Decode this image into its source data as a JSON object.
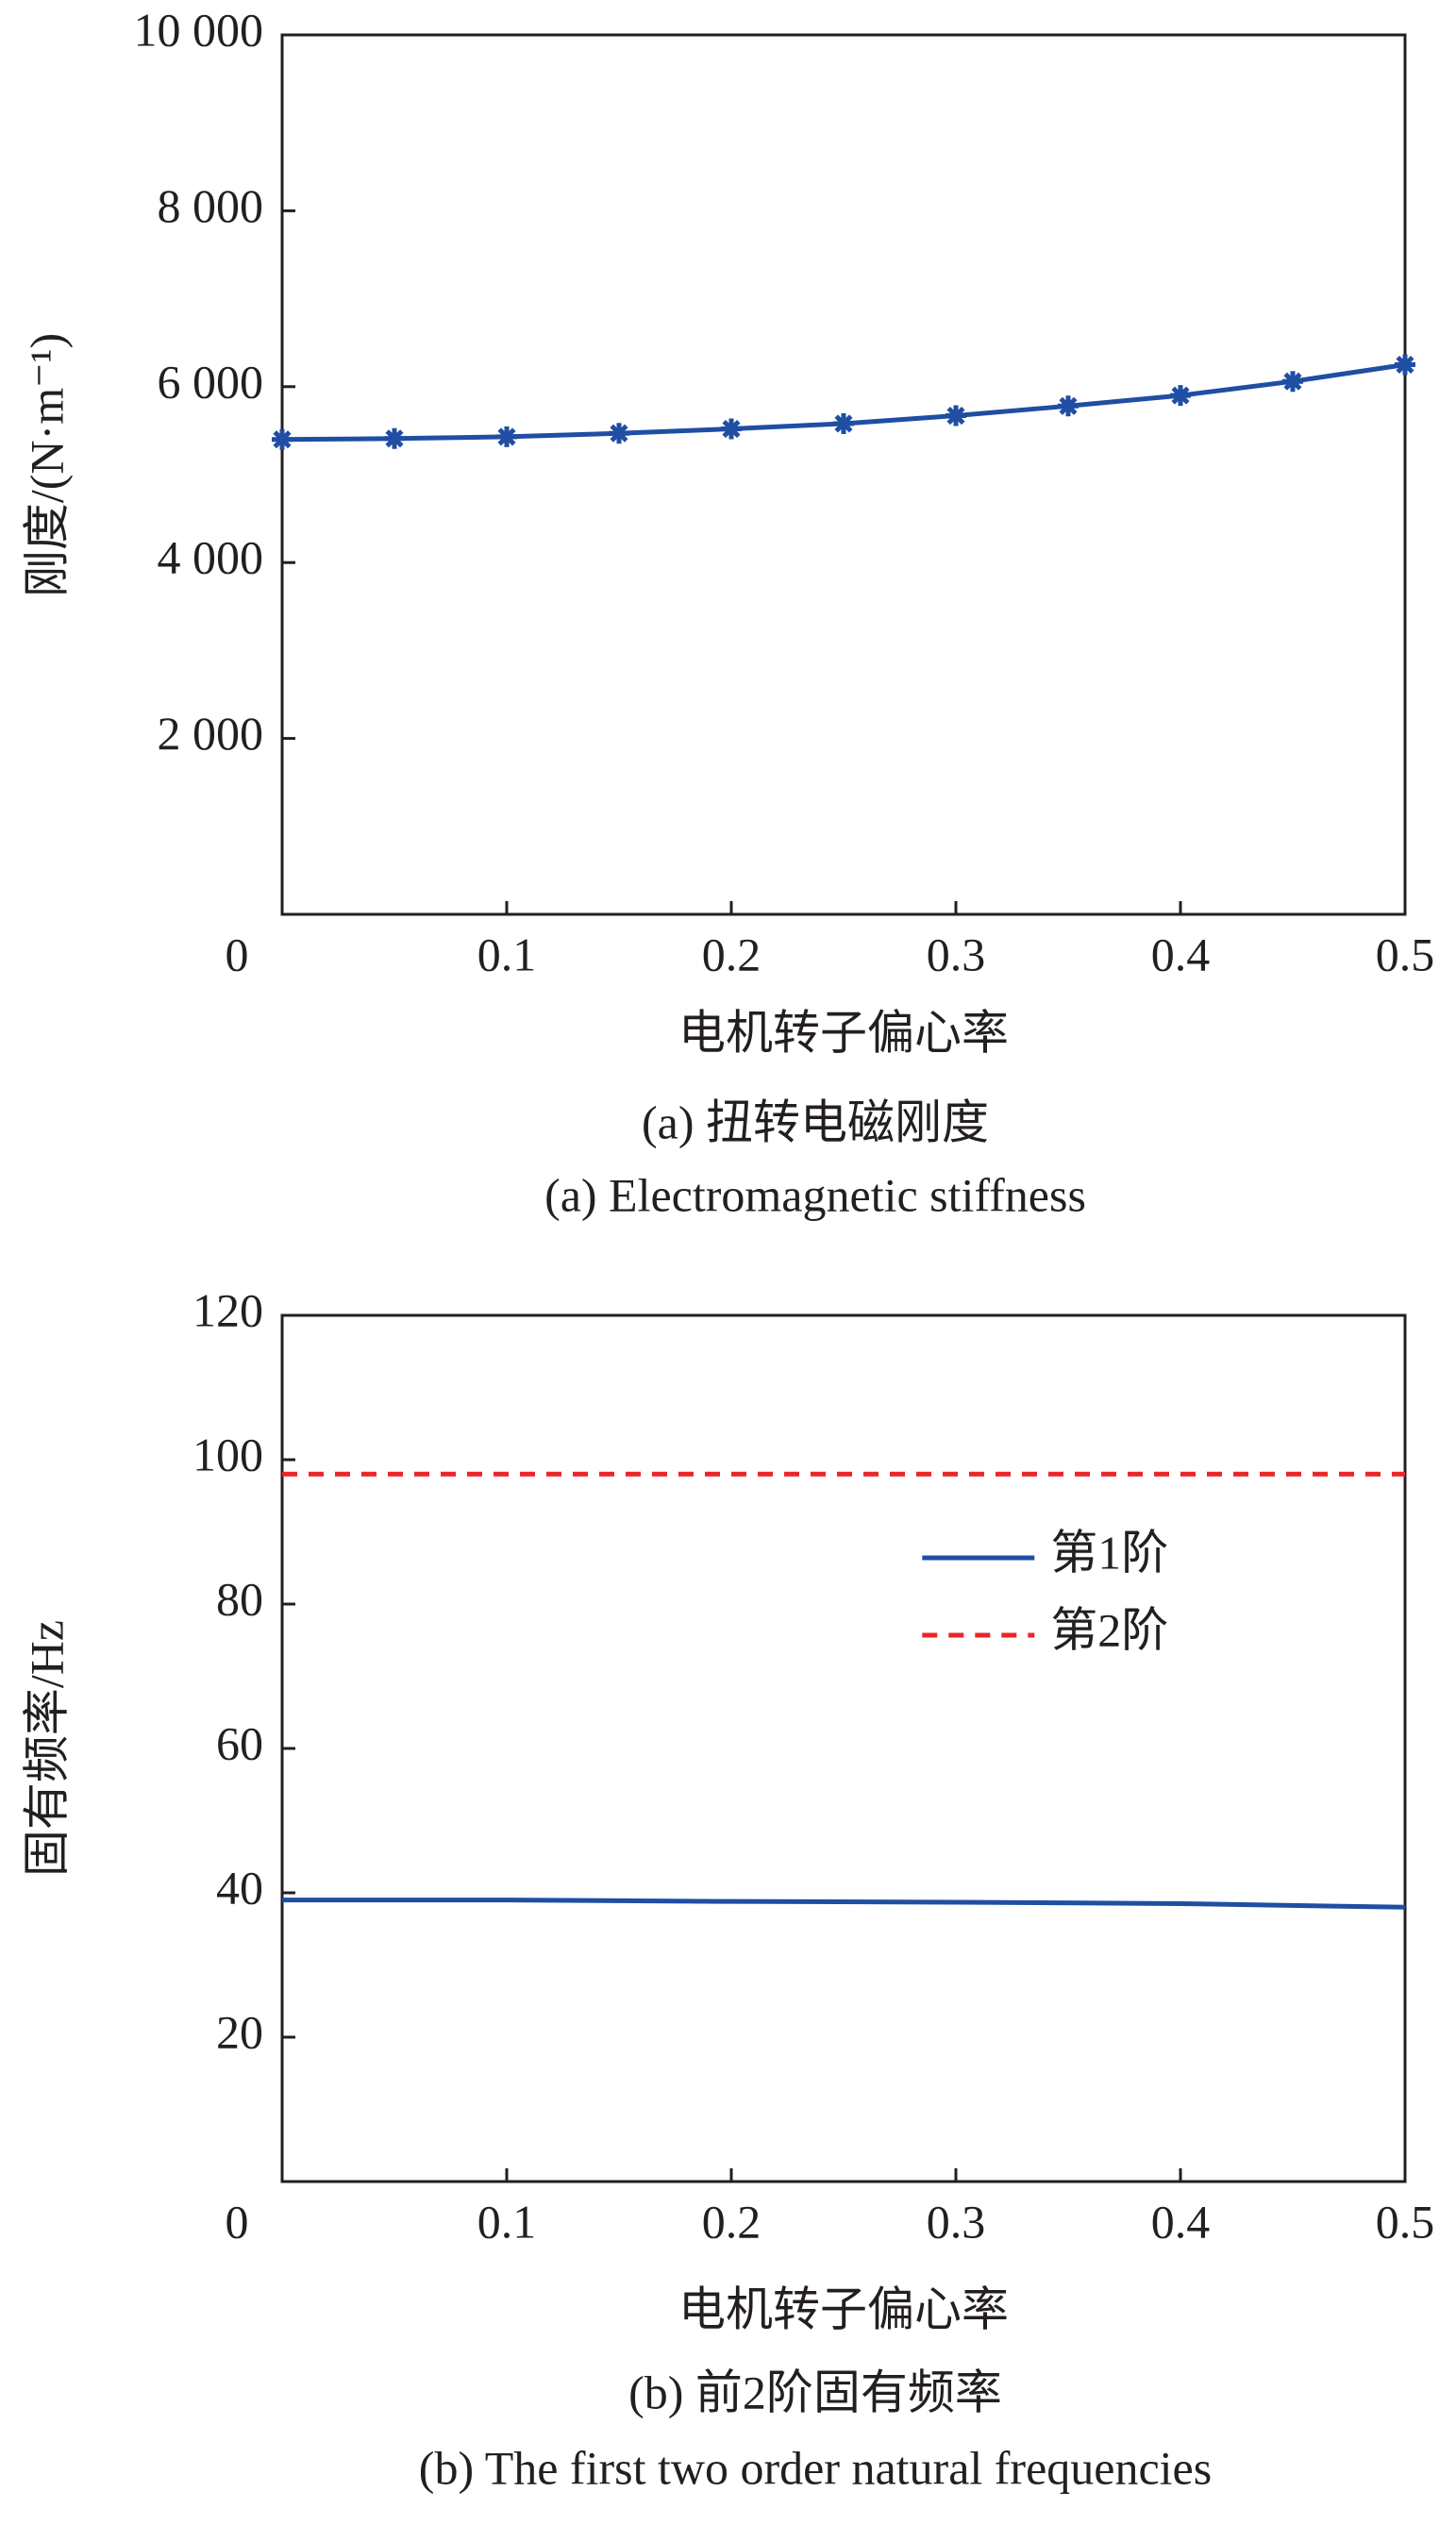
{
  "chart_data": [
    {
      "type": "line",
      "xlabel": "电机转子偏心率",
      "ylabel": "刚度/(N·m⁻¹)",
      "captions": [
        "(a) 扭转电磁刚度",
        "(a) Electromagnetic stiffness"
      ],
      "x": [
        0,
        0.05,
        0.1,
        0.15,
        0.2,
        0.25,
        0.3,
        0.35,
        0.4,
        0.45,
        0.5
      ],
      "series": [
        {
          "color": "#1f4ea3",
          "marker": "*",
          "linestyle": "solid",
          "values": [
            5400,
            5410,
            5430,
            5470,
            5520,
            5580,
            5670,
            5780,
            5900,
            6060,
            6250
          ]
        }
      ],
      "xlim": [
        0,
        0.5
      ],
      "ylim": [
        0,
        10000
      ],
      "xticks": [
        0,
        0.1,
        0.2,
        0.3,
        0.4,
        0.5
      ],
      "yticks": [
        {
          "value": 2000,
          "label": "2 000"
        },
        {
          "value": 4000,
          "label": "4 000"
        },
        {
          "value": 6000,
          "label": "6 000"
        },
        {
          "value": 8000,
          "label": "8 000"
        },
        {
          "value": 10000,
          "label": "10 000"
        }
      ]
    },
    {
      "type": "line",
      "xlabel": "电机转子偏心率",
      "ylabel": "固有频率/Hz",
      "captions": [
        "(b) 前2阶固有频率",
        "(b) The first two order natural frequencies"
      ],
      "x": [
        0,
        0.1,
        0.2,
        0.3,
        0.4,
        0.5
      ],
      "series": [
        {
          "name": "第1阶",
          "color": "#1f4ea3",
          "linestyle": "solid",
          "values": [
            39,
            39,
            38.8,
            38.7,
            38.5,
            38
          ]
        },
        {
          "name": "第2阶",
          "color": "#e8262a",
          "linestyle": "dashed",
          "values": [
            98,
            98,
            98,
            98,
            98,
            98
          ]
        }
      ],
      "legend": "right",
      "xlim": [
        0,
        0.5
      ],
      "ylim": [
        0,
        120
      ],
      "xticks": [
        0,
        0.1,
        0.2,
        0.3,
        0.4,
        0.5
      ],
      "yticks": [
        20,
        40,
        60,
        80,
        100,
        120
      ]
    }
  ]
}
